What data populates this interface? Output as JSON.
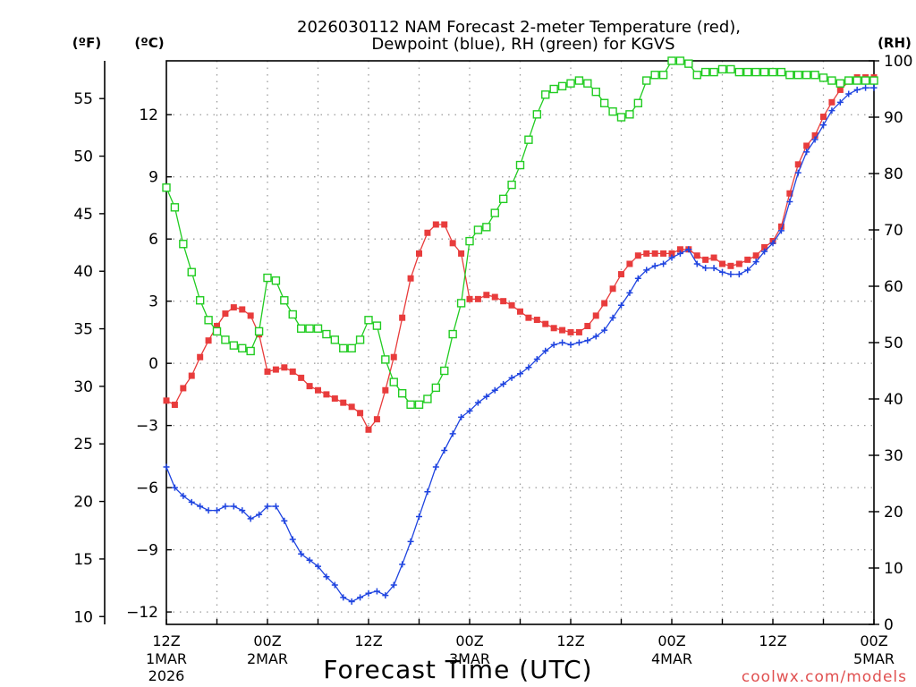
{
  "chart_data": {
    "type": "line",
    "title_line1": "2026030112 NAM Forecast 2-meter Temperature (red),",
    "title_line2": "Dewpoint (blue), RH (green) for KGVS",
    "xlabel": "Forecast Time (UTC)",
    "credit": "coolwx.com/models",
    "unit_f": "(ºF)",
    "unit_c": "(ºC)",
    "unit_rh": "(RH)",
    "hours_range": [
      0,
      84
    ],
    "c_range": [
      -12.6,
      14.6
    ],
    "rh_range": [
      0,
      100
    ],
    "ticks_f": [
      "55",
      "50",
      "45",
      "40",
      "35",
      "30",
      "25",
      "20",
      "15",
      "10"
    ],
    "ticks_c": [
      "12",
      "9",
      "6",
      "3",
      "0",
      "−3",
      "−6",
      "−9",
      "−12"
    ],
    "ticks_rh": [
      "100",
      "90",
      "80",
      "70",
      "60",
      "50",
      "40",
      "30",
      "20",
      "10",
      "0"
    ],
    "x_ticks": [
      {
        "hour": 0,
        "time": "12Z",
        "date": "1MAR",
        "year": "2026"
      },
      {
        "hour": 12,
        "time": "00Z",
        "date": "2MAR",
        "year": ""
      },
      {
        "hour": 24,
        "time": "12Z",
        "date": "",
        "year": ""
      },
      {
        "hour": 36,
        "time": "00Z",
        "date": "3MAR",
        "year": ""
      },
      {
        "hour": 48,
        "time": "12Z",
        "date": "",
        "year": ""
      },
      {
        "hour": 60,
        "time": "00Z",
        "date": "4MAR",
        "year": ""
      },
      {
        "hour": 72,
        "time": "12Z",
        "date": "",
        "year": ""
      },
      {
        "hour": 84,
        "time": "00Z",
        "date": "5MAR",
        "year": ""
      }
    ],
    "series": [
      {
        "name": "2-meter Temperature",
        "color": "#e83c3c",
        "marker": "square-filled",
        "axis": "C",
        "values": [
          [
            0,
            -1.8
          ],
          [
            1,
            -2
          ],
          [
            2,
            -1.2
          ],
          [
            3,
            -0.6
          ],
          [
            4,
            0.3
          ],
          [
            5,
            1.1
          ],
          [
            6,
            1.8
          ],
          [
            7,
            2.4
          ],
          [
            8,
            2.7
          ],
          [
            9,
            2.6
          ],
          [
            10,
            2.3
          ],
          [
            11,
            1.4
          ],
          [
            12,
            -0.4
          ],
          [
            13,
            -0.3
          ],
          [
            14,
            -0.2
          ],
          [
            15,
            -0.4
          ],
          [
            16,
            -0.7
          ],
          [
            17,
            -1.1
          ],
          [
            18,
            -1.3
          ],
          [
            19,
            -1.5
          ],
          [
            20,
            -1.7
          ],
          [
            21,
            -1.9
          ],
          [
            22,
            -2.1
          ],
          [
            23,
            -2.4
          ],
          [
            24,
            -3.2
          ],
          [
            25,
            -2.7
          ],
          [
            26,
            -1.3
          ],
          [
            27,
            0.3
          ],
          [
            28,
            2.2
          ],
          [
            29,
            4.1
          ],
          [
            30,
            5.3
          ],
          [
            31,
            6.3
          ],
          [
            32,
            6.7
          ],
          [
            33,
            6.7
          ],
          [
            34,
            5.8
          ],
          [
            35,
            5.3
          ],
          [
            36,
            3.1
          ],
          [
            37,
            3.1
          ],
          [
            38,
            3.3
          ],
          [
            39,
            3.2
          ],
          [
            40,
            3
          ],
          [
            41,
            2.8
          ],
          [
            42,
            2.5
          ],
          [
            43,
            2.2
          ],
          [
            44,
            2.1
          ],
          [
            45,
            1.9
          ],
          [
            46,
            1.7
          ],
          [
            47,
            1.6
          ],
          [
            48,
            1.5
          ],
          [
            49,
            1.5
          ],
          [
            50,
            1.8
          ],
          [
            51,
            2.3
          ],
          [
            52,
            2.9
          ],
          [
            53,
            3.6
          ],
          [
            54,
            4.3
          ],
          [
            55,
            4.8
          ],
          [
            56,
            5.2
          ],
          [
            57,
            5.3
          ],
          [
            58,
            5.3
          ],
          [
            59,
            5.3
          ],
          [
            60,
            5.3
          ],
          [
            61,
            5.5
          ],
          [
            62,
            5.5
          ],
          [
            63,
            5.2
          ],
          [
            64,
            5
          ],
          [
            65,
            5.1
          ],
          [
            66,
            4.8
          ],
          [
            67,
            4.7
          ],
          [
            68,
            4.8
          ],
          [
            69,
            5
          ],
          [
            70,
            5.2
          ],
          [
            71,
            5.6
          ],
          [
            72,
            5.9
          ],
          [
            73,
            6.6
          ],
          [
            74,
            8.2
          ],
          [
            75,
            9.6
          ],
          [
            76,
            10.5
          ],
          [
            77,
            11
          ],
          [
            78,
            11.9
          ],
          [
            79,
            12.6
          ],
          [
            80,
            13.2
          ],
          [
            81,
            13.6
          ],
          [
            82,
            13.8
          ],
          [
            83,
            13.8
          ],
          [
            84,
            13.8
          ]
        ]
      },
      {
        "name": "Dewpoint",
        "color": "#1f44e0",
        "marker": "plus",
        "axis": "C",
        "values": [
          [
            0,
            -5
          ],
          [
            1,
            -6
          ],
          [
            2,
            -6.4
          ],
          [
            3,
            -6.7
          ],
          [
            4,
            -6.9
          ],
          [
            5,
            -7.1
          ],
          [
            6,
            -7.1
          ],
          [
            7,
            -6.9
          ],
          [
            8,
            -6.9
          ],
          [
            9,
            -7.1
          ],
          [
            10,
            -7.5
          ],
          [
            11,
            -7.3
          ],
          [
            12,
            -6.9
          ],
          [
            13,
            -6.9
          ],
          [
            14,
            -7.6
          ],
          [
            15,
            -8.5
          ],
          [
            16,
            -9.2
          ],
          [
            17,
            -9.5
          ],
          [
            18,
            -9.8
          ],
          [
            19,
            -10.3
          ],
          [
            20,
            -10.7
          ],
          [
            21,
            -11.3
          ],
          [
            22,
            -11.5
          ],
          [
            23,
            -11.3
          ],
          [
            24,
            -11.1
          ],
          [
            25,
            -11
          ],
          [
            26,
            -11.2
          ],
          [
            27,
            -10.7
          ],
          [
            28,
            -9.7
          ],
          [
            29,
            -8.6
          ],
          [
            30,
            -7.4
          ],
          [
            31,
            -6.2
          ],
          [
            32,
            -5
          ],
          [
            33,
            -4.2
          ],
          [
            34,
            -3.4
          ],
          [
            35,
            -2.6
          ],
          [
            36,
            -2.3
          ],
          [
            37,
            -1.9
          ],
          [
            38,
            -1.6
          ],
          [
            39,
            -1.3
          ],
          [
            40,
            -1
          ],
          [
            41,
            -0.7
          ],
          [
            42,
            -0.5
          ],
          [
            43,
            -0.2
          ],
          [
            44,
            0.2
          ],
          [
            45,
            0.6
          ],
          [
            46,
            0.9
          ],
          [
            47,
            1
          ],
          [
            48,
            0.9
          ],
          [
            49,
            1
          ],
          [
            50,
            1.1
          ],
          [
            51,
            1.3
          ],
          [
            52,
            1.6
          ],
          [
            53,
            2.2
          ],
          [
            54,
            2.8
          ],
          [
            55,
            3.4
          ],
          [
            56,
            4.1
          ],
          [
            57,
            4.5
          ],
          [
            58,
            4.7
          ],
          [
            59,
            4.8
          ],
          [
            60,
            5.1
          ],
          [
            61,
            5.3
          ],
          [
            62,
            5.5
          ],
          [
            63,
            4.8
          ],
          [
            64,
            4.6
          ],
          [
            65,
            4.6
          ],
          [
            66,
            4.4
          ],
          [
            67,
            4.3
          ],
          [
            68,
            4.3
          ],
          [
            69,
            4.5
          ],
          [
            70,
            4.9
          ],
          [
            71,
            5.4
          ],
          [
            72,
            5.8
          ],
          [
            73,
            6.4
          ],
          [
            74,
            7.8
          ],
          [
            75,
            9.2
          ],
          [
            76,
            10.2
          ],
          [
            77,
            10.8
          ],
          [
            78,
            11.5
          ],
          [
            79,
            12.2
          ],
          [
            80,
            12.6
          ],
          [
            81,
            13
          ],
          [
            82,
            13.2
          ],
          [
            83,
            13.3
          ],
          [
            84,
            13.3
          ]
        ]
      },
      {
        "name": "RH",
        "color": "#22cc22",
        "marker": "square-open",
        "axis": "RH",
        "values": [
          [
            0,
            77.5
          ],
          [
            1,
            74
          ],
          [
            2,
            67.5
          ],
          [
            3,
            62.5
          ],
          [
            4,
            57.5
          ],
          [
            5,
            54
          ],
          [
            6,
            52
          ],
          [
            7,
            50.5
          ],
          [
            8,
            49.5
          ],
          [
            9,
            49
          ],
          [
            10,
            48.5
          ],
          [
            11,
            52
          ],
          [
            12,
            61.5
          ],
          [
            13,
            61
          ],
          [
            14,
            57.5
          ],
          [
            15,
            55
          ],
          [
            16,
            52.5
          ],
          [
            17,
            52.5
          ],
          [
            18,
            52.5
          ],
          [
            19,
            51.5
          ],
          [
            20,
            50.5
          ],
          [
            21,
            49
          ],
          [
            22,
            49
          ],
          [
            23,
            50.5
          ],
          [
            24,
            54
          ],
          [
            25,
            53
          ],
          [
            26,
            47
          ],
          [
            27,
            43
          ],
          [
            28,
            41
          ],
          [
            29,
            39
          ],
          [
            30,
            39
          ],
          [
            31,
            40
          ],
          [
            32,
            42
          ],
          [
            33,
            45
          ],
          [
            34,
            51.5
          ],
          [
            35,
            57
          ],
          [
            36,
            68
          ],
          [
            37,
            70
          ],
          [
            38,
            70.5
          ],
          [
            39,
            73
          ],
          [
            40,
            75.5
          ],
          [
            41,
            78
          ],
          [
            42,
            81.5
          ],
          [
            43,
            86
          ],
          [
            44,
            90.5
          ],
          [
            45,
            94
          ],
          [
            46,
            95
          ],
          [
            47,
            95.5
          ],
          [
            48,
            96
          ],
          [
            49,
            96.5
          ],
          [
            50,
            96
          ],
          [
            51,
            94.5
          ],
          [
            52,
            92.5
          ],
          [
            53,
            91
          ],
          [
            54,
            90
          ],
          [
            55,
            90.5
          ],
          [
            56,
            92.5
          ],
          [
            57,
            96.5
          ],
          [
            58,
            97.5
          ],
          [
            59,
            97.5
          ],
          [
            60,
            100
          ],
          [
            61,
            100
          ],
          [
            62,
            99.5
          ],
          [
            63,
            97.5
          ],
          [
            64,
            98
          ],
          [
            65,
            98
          ],
          [
            66,
            98.5
          ],
          [
            67,
            98.5
          ],
          [
            68,
            98
          ],
          [
            69,
            98
          ],
          [
            70,
            98
          ],
          [
            71,
            98
          ],
          [
            72,
            98
          ],
          [
            73,
            98
          ],
          [
            74,
            97.5
          ],
          [
            75,
            97.5
          ],
          [
            76,
            97.5
          ],
          [
            77,
            97.5
          ],
          [
            78,
            97
          ],
          [
            79,
            96.5
          ],
          [
            80,
            96
          ],
          [
            81,
            96.5
          ],
          [
            82,
            96.5
          ],
          [
            83,
            96.5
          ],
          [
            84,
            96.5
          ]
        ]
      }
    ]
  }
}
